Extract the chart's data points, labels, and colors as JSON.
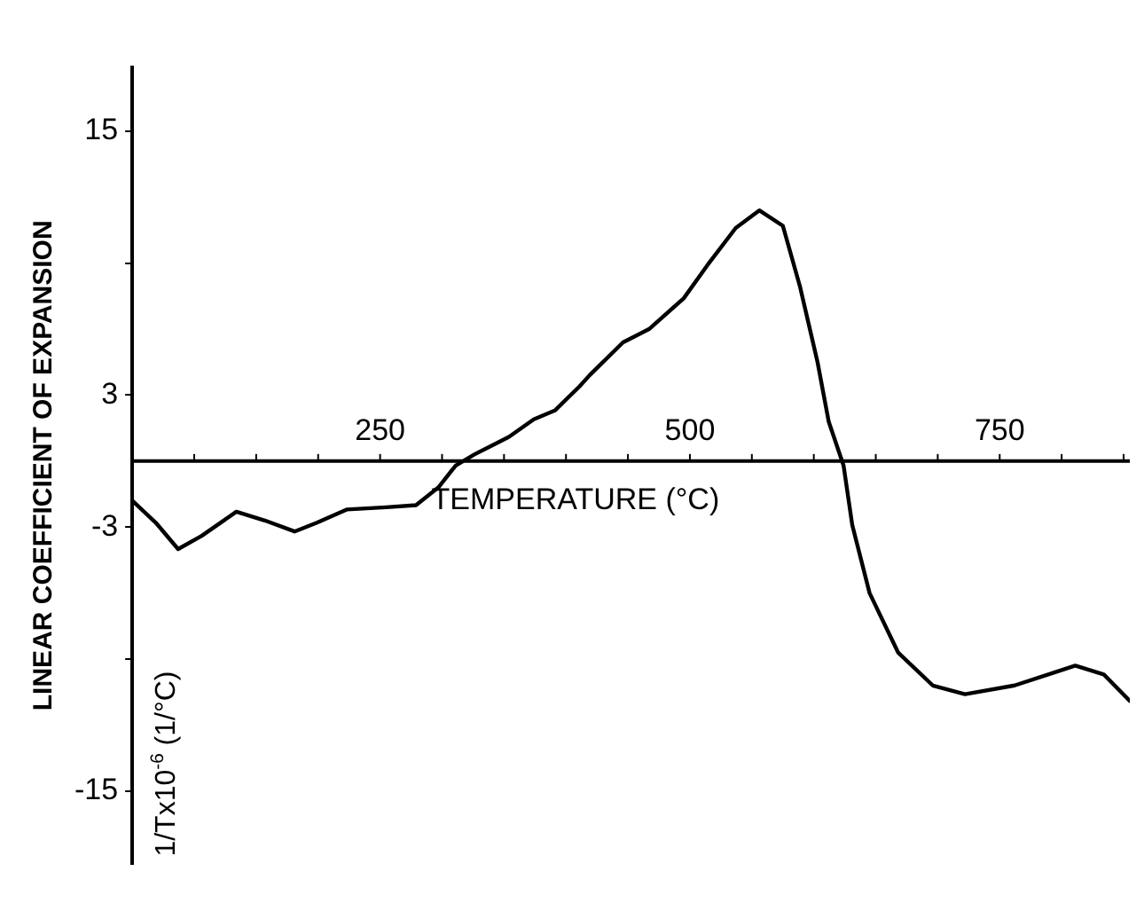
{
  "chart_data": {
    "type": "line",
    "xlabel": "TEMPERATURE (°C)",
    "ylabel": "LINEAR COEFFICIENT OF EXPANSION",
    "annotations": [
      "1/Tx10$^{-6}$ (1/°C)"
    ],
    "xlim": [
      50,
      855
    ],
    "ylim": [
      -18.3,
      17.9
    ],
    "xticks": [
      {
        "value": 100,
        "label": null
      },
      {
        "value": 150,
        "label": null
      },
      {
        "value": 200,
        "label": null
      },
      250,
      {
        "value": 300,
        "label": null
      },
      {
        "value": 350,
        "label": null
      },
      {
        "value": 400,
        "label": null
      },
      {
        "value": 450,
        "label": null
      },
      500,
      {
        "value": 550,
        "label": null
      },
      {
        "value": 600,
        "label": null
      },
      {
        "value": 650,
        "label": null
      },
      {
        "value": 700,
        "label": null
      },
      750,
      {
        "value": 800,
        "label": null
      },
      {
        "value": 850,
        "label": null
      }
    ],
    "yticks": [
      -15,
      {
        "value": -9,
        "label": null
      },
      -3,
      3,
      {
        "value": 9,
        "label": null
      },
      15
    ],
    "grid": false,
    "legend": false,
    "marker": "none",
    "line_style": "solid",
    "series": [
      {
        "color": "#000000",
        "x": [
          50,
          69,
          87,
          106,
          134,
          157,
          181,
          199,
          223,
          255,
          279,
          297,
          311,
          326,
          354,
          374,
          391,
          411,
          419,
          446,
          467,
          495,
          514,
          537,
          556,
          575,
          589,
          603,
          612,
          624,
          631,
          645,
          668,
          696,
          722,
          762,
          811,
          834,
          855
        ],
        "values": [
          -1.8,
          -2.8,
          -4.0,
          -3.4,
          -2.3,
          -2.7,
          -3.2,
          -2.8,
          -2.2,
          -2.1,
          -2.0,
          -1.2,
          -0.2,
          0.3,
          1.1,
          1.9,
          2.3,
          3.4,
          3.9,
          5.4,
          6.0,
          7.4,
          8.9,
          10.6,
          11.4,
          10.7,
          7.9,
          4.5,
          1.8,
          -0.2,
          -2.9,
          -6.0,
          -8.7,
          -10.2,
          -10.6,
          -10.2,
          -9.3,
          -9.7,
          -10.9
        ]
      }
    ]
  }
}
